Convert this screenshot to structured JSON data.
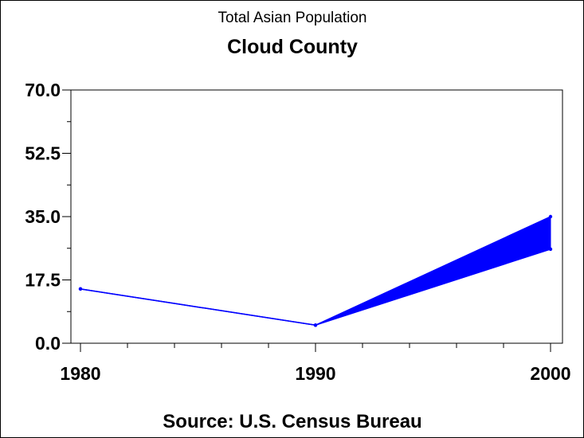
{
  "chart_data": {
    "type": "line",
    "title": "Total Asian Population",
    "subtitle": "Cloud County",
    "source": "Source: U.S. Census Bureau",
    "x": [
      1980,
      1990,
      2000
    ],
    "x_tick_labels": [
      "1980",
      "1990",
      "2000"
    ],
    "y_tick_labels": [
      "0.0",
      "17.5",
      "35.0",
      "52.5",
      "70.0"
    ],
    "y_ticks": [
      0,
      17.5,
      35,
      52.5,
      70
    ],
    "ylim": [
      0,
      70
    ],
    "xlim": [
      1980,
      2000
    ],
    "series": [
      {
        "values": [
          15,
          5,
          35
        ]
      },
      {
        "values": [
          15,
          5,
          26
        ]
      }
    ],
    "band_between_series_2000": true,
    "series_color": "#0000ff",
    "grid": false,
    "legend": "none"
  }
}
